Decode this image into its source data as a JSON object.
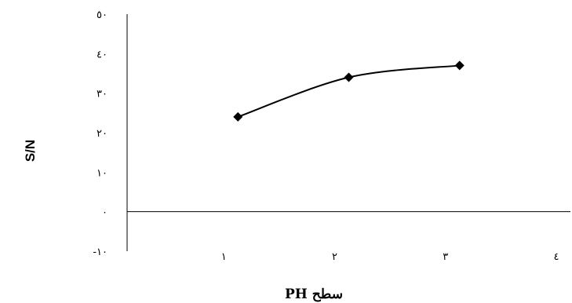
{
  "chart_data": {
    "type": "line",
    "title": "",
    "xlabel": "سطح PH",
    "ylabel": "S/N",
    "x": [
      1,
      2,
      3
    ],
    "series": [
      {
        "values": [
          24,
          34,
          37
        ],
        "color": "#000000",
        "marker": "diamond"
      }
    ],
    "xlim": [
      0,
      4
    ],
    "ylim": [
      -10,
      50
    ],
    "x_ticks": [
      {
        "value": 1,
        "label": "١"
      },
      {
        "value": 2,
        "label": "٢"
      },
      {
        "value": 3,
        "label": "٣"
      },
      {
        "value": 4,
        "label": "٤"
      }
    ],
    "y_ticks": [
      {
        "value": 50,
        "label": "٥٠"
      },
      {
        "value": 40,
        "label": "٤٠"
      },
      {
        "value": 30,
        "label": "٣٠"
      },
      {
        "value": 20,
        "label": "٢٠"
      },
      {
        "value": 10,
        "label": "١٠"
      },
      {
        "value": 0,
        "label": "٠"
      },
      {
        "value": -10,
        "label": "-١٠"
      }
    ],
    "grid": false,
    "legend": "none"
  }
}
